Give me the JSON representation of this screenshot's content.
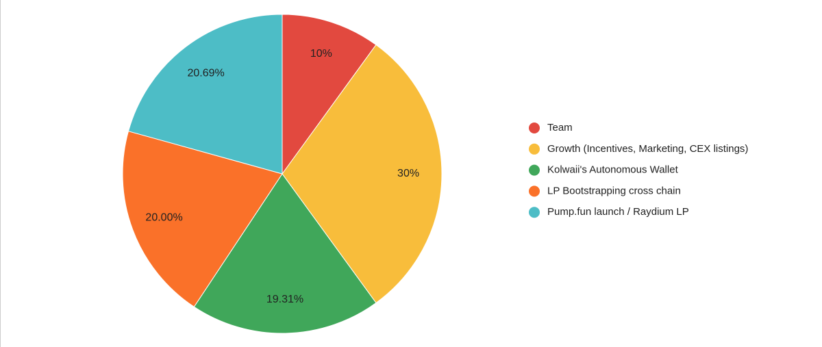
{
  "chart_data": {
    "type": "pie",
    "categories": [
      "Team",
      "Growth (Incentives, Marketing, CEX listings)",
      "Kolwaii's Autonomous Wallet",
      "LP Bootstrapping cross chain",
      "Pump.fun launch / Raydium LP"
    ],
    "values": [
      10,
      30,
      19.31,
      20,
      20.69
    ],
    "value_labels": [
      "10%",
      "30%",
      "19.31%",
      "20.00%",
      "20.69%"
    ],
    "colors": [
      "#e2493f",
      "#f8bd3b",
      "#40a75a",
      "#fa7129",
      "#4dbdc6"
    ],
    "legend": "right"
  }
}
